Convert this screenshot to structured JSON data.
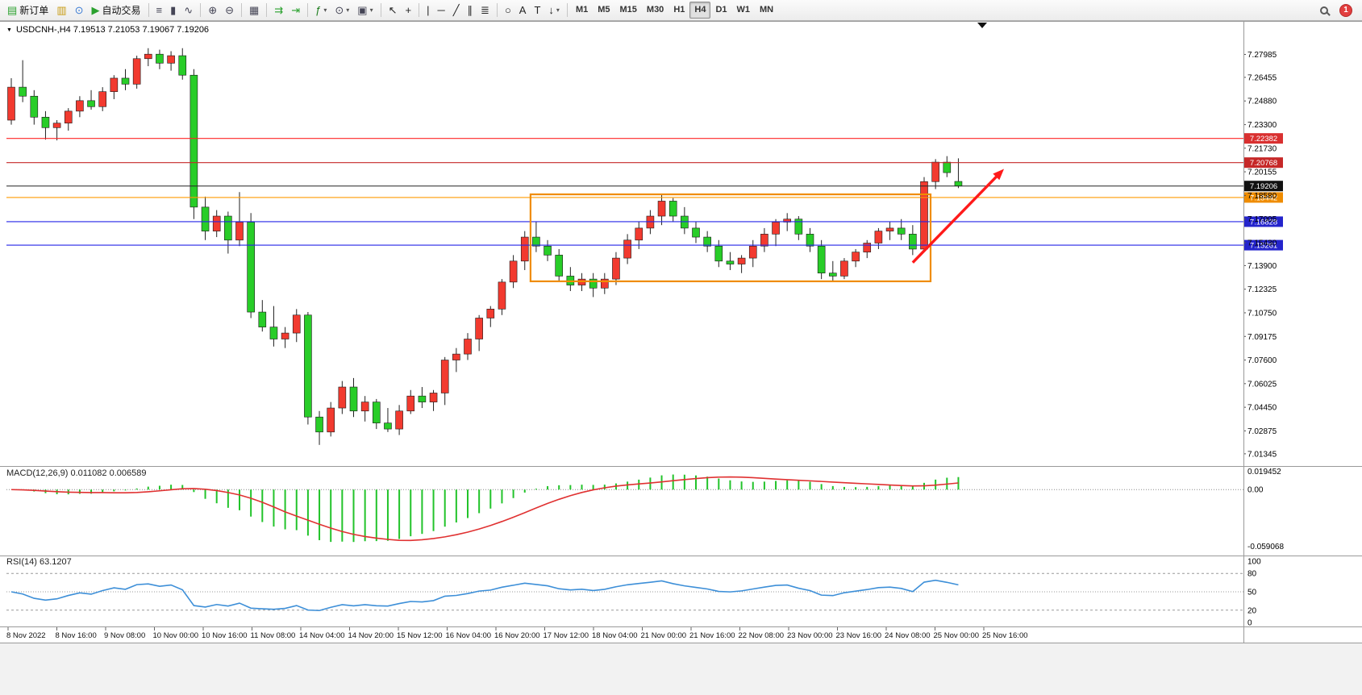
{
  "toolbar": {
    "groups": [
      {
        "items": [
          {
            "name": "new-order",
            "glyph": "▤",
            "color": "#2aa12e",
            "label": "新订单"
          },
          {
            "name": "new-chart",
            "glyph": "▥",
            "color": "#c79a10"
          },
          {
            "name": "profiles",
            "glyph": "⊙",
            "color": "#3a7bd5"
          },
          {
            "name": "auto-trading",
            "glyph": "▶",
            "color": "#2aa12e",
            "label": "自动交易"
          }
        ]
      },
      {
        "items": [
          {
            "name": "bar-chart",
            "glyph": "≡",
            "color": "#444455"
          },
          {
            "name": "candlestick-chart",
            "glyph": "▮",
            "color": "#444455"
          },
          {
            "name": "line-chart",
            "glyph": "∿",
            "color": "#444455"
          }
        ]
      },
      {
        "items": [
          {
            "name": "zoom-in",
            "glyph": "⊕",
            "color": "#444455"
          },
          {
            "name": "zoom-out",
            "glyph": "⊖",
            "color": "#444455"
          }
        ]
      },
      {
        "items": [
          {
            "name": "tile-windows",
            "glyph": "▦",
            "color": "#444455"
          }
        ]
      },
      {
        "items": [
          {
            "name": "auto-scroll",
            "glyph": "⇉",
            "color": "#2aa12e"
          },
          {
            "name": "chart-shift",
            "glyph": "⇥",
            "color": "#2aa12e"
          }
        ]
      },
      {
        "items": [
          {
            "name": "indicators",
            "glyph": "ƒ",
            "color": "#1c7c1c",
            "caret": true
          },
          {
            "name": "periods",
            "glyph": "⊙",
            "color": "#444455",
            "caret": true
          },
          {
            "name": "templates",
            "glyph": "▣",
            "color": "#444455",
            "caret": true
          }
        ]
      },
      {
        "items": [
          {
            "name": "cursor",
            "glyph": "↖",
            "color": "#222222"
          },
          {
            "name": "crosshair",
            "glyph": "+",
            "color": "#222222"
          }
        ]
      },
      {
        "items": [
          {
            "name": "vertical-line",
            "glyph": "|",
            "color": "#222222"
          },
          {
            "name": "horizontal-line",
            "glyph": "─",
            "color": "#222222"
          },
          {
            "name": "trendline",
            "glyph": "╱",
            "color": "#222222"
          },
          {
            "name": "equidistant-channel",
            "glyph": "∥",
            "color": "#222222"
          },
          {
            "name": "fibonacci",
            "glyph": "≣",
            "color": "#222222"
          }
        ]
      },
      {
        "items": [
          {
            "name": "shapes",
            "glyph": "○",
            "color": "#222222"
          },
          {
            "name": "text",
            "glyph": "A",
            "color": "#222222"
          },
          {
            "name": "text-label",
            "glyph": "T",
            "color": "#222222"
          },
          {
            "name": "arrows",
            "glyph": "↓",
            "color": "#222222",
            "caret": true
          }
        ]
      }
    ],
    "timeframes": [
      "M1",
      "M5",
      "M15",
      "M30",
      "H1",
      "H4",
      "D1",
      "W1",
      "MN"
    ],
    "active_timeframe": "H4",
    "notification_count": "1"
  },
  "chart": {
    "symbol_info": "USDCNH-,H4  7.19513 7.21053 7.19067 7.19206"
  },
  "chart_data": {
    "type": "candlestick",
    "title": "USDCNH-,H4",
    "colors": {
      "up": "#f23a2f",
      "down": "#28cd28",
      "wick": "#222222"
    },
    "ohlc": [
      [
        7.236,
        7.264,
        7.233,
        7.258
      ],
      [
        7.258,
        7.276,
        7.248,
        7.252
      ],
      [
        7.252,
        7.256,
        7.233,
        7.238
      ],
      [
        7.238,
        7.242,
        7.223,
        7.231
      ],
      [
        7.231,
        7.236,
        7.2225,
        7.234
      ],
      [
        7.234,
        7.244,
        7.229,
        7.242
      ],
      [
        7.242,
        7.252,
        7.238,
        7.249
      ],
      [
        7.249,
        7.256,
        7.243,
        7.245
      ],
      [
        7.245,
        7.258,
        7.242,
        7.255
      ],
      [
        7.255,
        7.266,
        7.25,
        7.264
      ],
      [
        7.264,
        7.27,
        7.256,
        7.26
      ],
      [
        7.26,
        7.279,
        7.257,
        7.277
      ],
      [
        7.277,
        7.284,
        7.272,
        7.28
      ],
      [
        7.28,
        7.283,
        7.27,
        7.274
      ],
      [
        7.274,
        7.282,
        7.269,
        7.279
      ],
      [
        7.279,
        7.284,
        7.263,
        7.266
      ],
      [
        7.266,
        7.27,
        7.17,
        7.178
      ],
      [
        7.178,
        7.185,
        7.156,
        7.162
      ],
      [
        7.162,
        7.176,
        7.158,
        7.172
      ],
      [
        7.172,
        7.175,
        7.147,
        7.156
      ],
      [
        7.156,
        7.188,
        7.152,
        7.168
      ],
      [
        7.168,
        7.174,
        7.104,
        7.108
      ],
      [
        7.108,
        7.116,
        7.095,
        7.098
      ],
      [
        7.098,
        7.112,
        7.085,
        7.09
      ],
      [
        7.09,
        7.098,
        7.084,
        7.094
      ],
      [
        7.094,
        7.11,
        7.088,
        7.106
      ],
      [
        7.106,
        7.108,
        7.033,
        7.038
      ],
      [
        7.038,
        7.042,
        7.0194,
        7.028
      ],
      [
        7.028,
        7.048,
        7.025,
        7.044
      ],
      [
        7.044,
        7.062,
        7.04,
        7.058
      ],
      [
        7.058,
        7.064,
        7.038,
        7.042
      ],
      [
        7.042,
        7.052,
        7.035,
        7.048
      ],
      [
        7.048,
        7.05,
        7.03,
        7.034
      ],
      [
        7.034,
        7.044,
        7.028,
        7.03
      ],
      [
        7.03,
        7.046,
        7.026,
        7.042
      ],
      [
        7.042,
        7.056,
        7.04,
        7.052
      ],
      [
        7.052,
        7.058,
        7.044,
        7.048
      ],
      [
        7.048,
        7.056,
        7.042,
        7.054
      ],
      [
        7.054,
        7.078,
        7.046,
        7.076
      ],
      [
        7.076,
        7.084,
        7.068,
        7.08
      ],
      [
        7.08,
        7.094,
        7.076,
        7.09
      ],
      [
        7.09,
        7.106,
        7.082,
        7.104
      ],
      [
        7.104,
        7.112,
        7.098,
        7.11
      ],
      [
        7.11,
        7.13,
        7.106,
        7.128
      ],
      [
        7.128,
        7.146,
        7.124,
        7.142
      ],
      [
        7.142,
        7.162,
        7.136,
        7.158
      ],
      [
        7.158,
        7.168,
        7.148,
        7.152
      ],
      [
        7.152,
        7.156,
        7.142,
        7.146
      ],
      [
        7.146,
        7.15,
        7.128,
        7.132
      ],
      [
        7.132,
        7.138,
        7.122,
        7.126
      ],
      [
        7.126,
        7.134,
        7.122,
        7.13
      ],
      [
        7.13,
        7.134,
        7.118,
        7.124
      ],
      [
        7.124,
        7.134,
        7.12,
        7.13
      ],
      [
        7.13,
        7.148,
        7.126,
        7.144
      ],
      [
        7.144,
        7.16,
        7.14,
        7.156
      ],
      [
        7.156,
        7.168,
        7.15,
        7.164
      ],
      [
        7.164,
        7.176,
        7.16,
        7.172
      ],
      [
        7.172,
        7.186,
        7.166,
        7.182
      ],
      [
        7.182,
        7.184,
        7.168,
        7.172
      ],
      [
        7.172,
        7.178,
        7.16,
        7.164
      ],
      [
        7.164,
        7.168,
        7.154,
        7.158
      ],
      [
        7.158,
        7.162,
        7.148,
        7.152
      ],
      [
        7.152,
        7.156,
        7.138,
        7.142
      ],
      [
        7.142,
        7.148,
        7.136,
        7.14
      ],
      [
        7.14,
        7.146,
        7.134,
        7.144
      ],
      [
        7.144,
        7.156,
        7.138,
        7.152
      ],
      [
        7.152,
        7.164,
        7.148,
        7.16
      ],
      [
        7.16,
        7.17,
        7.152,
        7.168
      ],
      [
        7.168,
        7.174,
        7.162,
        7.17
      ],
      [
        7.17,
        7.172,
        7.156,
        7.16
      ],
      [
        7.16,
        7.164,
        7.148,
        7.152
      ],
      [
        7.152,
        7.156,
        7.13,
        7.134
      ],
      [
        7.134,
        7.142,
        7.128,
        7.132
      ],
      [
        7.132,
        7.144,
        7.13,
        7.142
      ],
      [
        7.142,
        7.15,
        7.138,
        7.148
      ],
      [
        7.148,
        7.156,
        7.144,
        7.154
      ],
      [
        7.154,
        7.164,
        7.15,
        7.162
      ],
      [
        7.162,
        7.168,
        7.156,
        7.164
      ],
      [
        7.164,
        7.17,
        7.156,
        7.16
      ],
      [
        7.16,
        7.166,
        7.146,
        7.15
      ],
      [
        7.15,
        7.198,
        7.148,
        7.195
      ],
      [
        7.195,
        7.21,
        7.19,
        7.208
      ],
      [
        7.208,
        7.212,
        7.198,
        7.201
      ],
      [
        7.19513,
        7.21053,
        7.19067,
        7.19206
      ]
    ],
    "price_axis": [
      "7.27985",
      "7.26455",
      "7.24880",
      "7.23300",
      "7.21730",
      "7.20155",
      "7.18580",
      "7.17005",
      "7.15430",
      "7.13900",
      "7.12325",
      "7.10750",
      "7.09175",
      "7.07600",
      "7.06025",
      "7.04450",
      "7.02875",
      "7.01345"
    ],
    "hlines": [
      {
        "price": 7.22382,
        "label": "7.22382",
        "color": "#ff2525",
        "label_bg": "#d93030"
      },
      {
        "price": 7.20768,
        "label": "7.20768",
        "color": "#c62828",
        "label_bg": "#c62828"
      },
      {
        "price": 7.18442,
        "label": "7.18442",
        "color": "#ff9b00",
        "label_bg": "#ef8c00"
      },
      {
        "price": 7.16828,
        "label": "7.16828",
        "color": "#2424e8",
        "label_bg": "#2424cc"
      },
      {
        "price": 7.15261,
        "label": "7.15261",
        "color": "#2424e8",
        "label_bg": "#2424cc"
      }
    ],
    "current_price": {
      "value": 7.19206,
      "label": "7.19206",
      "color": "#222222",
      "label_bg": "#111111"
    },
    "box": {
      "from_bar": 46,
      "to_bar": 80,
      "top": 7.1865,
      "bottom": 7.1285,
      "color": "#ef8c00"
    },
    "arrow": {
      "from": {
        "bar": 79,
        "price": 7.141
      },
      "to": {
        "bar": 87,
        "price": 7.2035
      },
      "color": "#ff1a1a"
    },
    "indicators": {
      "macd": {
        "label": "MACD(12,26,9)  0.011082  0.006589",
        "params": [
          12,
          26,
          9
        ],
        "values": {
          "main": 0.011082,
          "signal": 0.006589
        },
        "axis_labels": [
          "0.019452",
          "0.00",
          "-0.059068"
        ],
        "histogram_color": "#22c32a",
        "signal_color": "#e03131"
      },
      "rsi": {
        "label": "RSI(14)  63.1207",
        "period": 14,
        "current": 63.1207,
        "axis_labels": [
          "100",
          "80",
          "50",
          "20",
          "0"
        ],
        "levels": [
          80,
          50,
          20
        ],
        "line_color": "#3d8fd8"
      }
    },
    "time_labels": [
      "8 Nov 2022",
      "8 Nov 16:00",
      "9 Nov 08:00",
      "10 Nov 00:00",
      "10 Nov 16:00",
      "11 Nov 08:00",
      "14 Nov 04:00",
      "14 Nov 20:00",
      "15 Nov 12:00",
      "16 Nov 04:00",
      "16 Nov 20:00",
      "17 Nov 12:00",
      "18 Nov 04:00",
      "21 Nov 00:00",
      "21 Nov 16:00",
      "22 Nov 08:00",
      "23 Nov 00:00",
      "23 Nov 16:00",
      "24 Nov 08:00",
      "25 Nov 00:00",
      "25 Nov 16:00"
    ]
  }
}
